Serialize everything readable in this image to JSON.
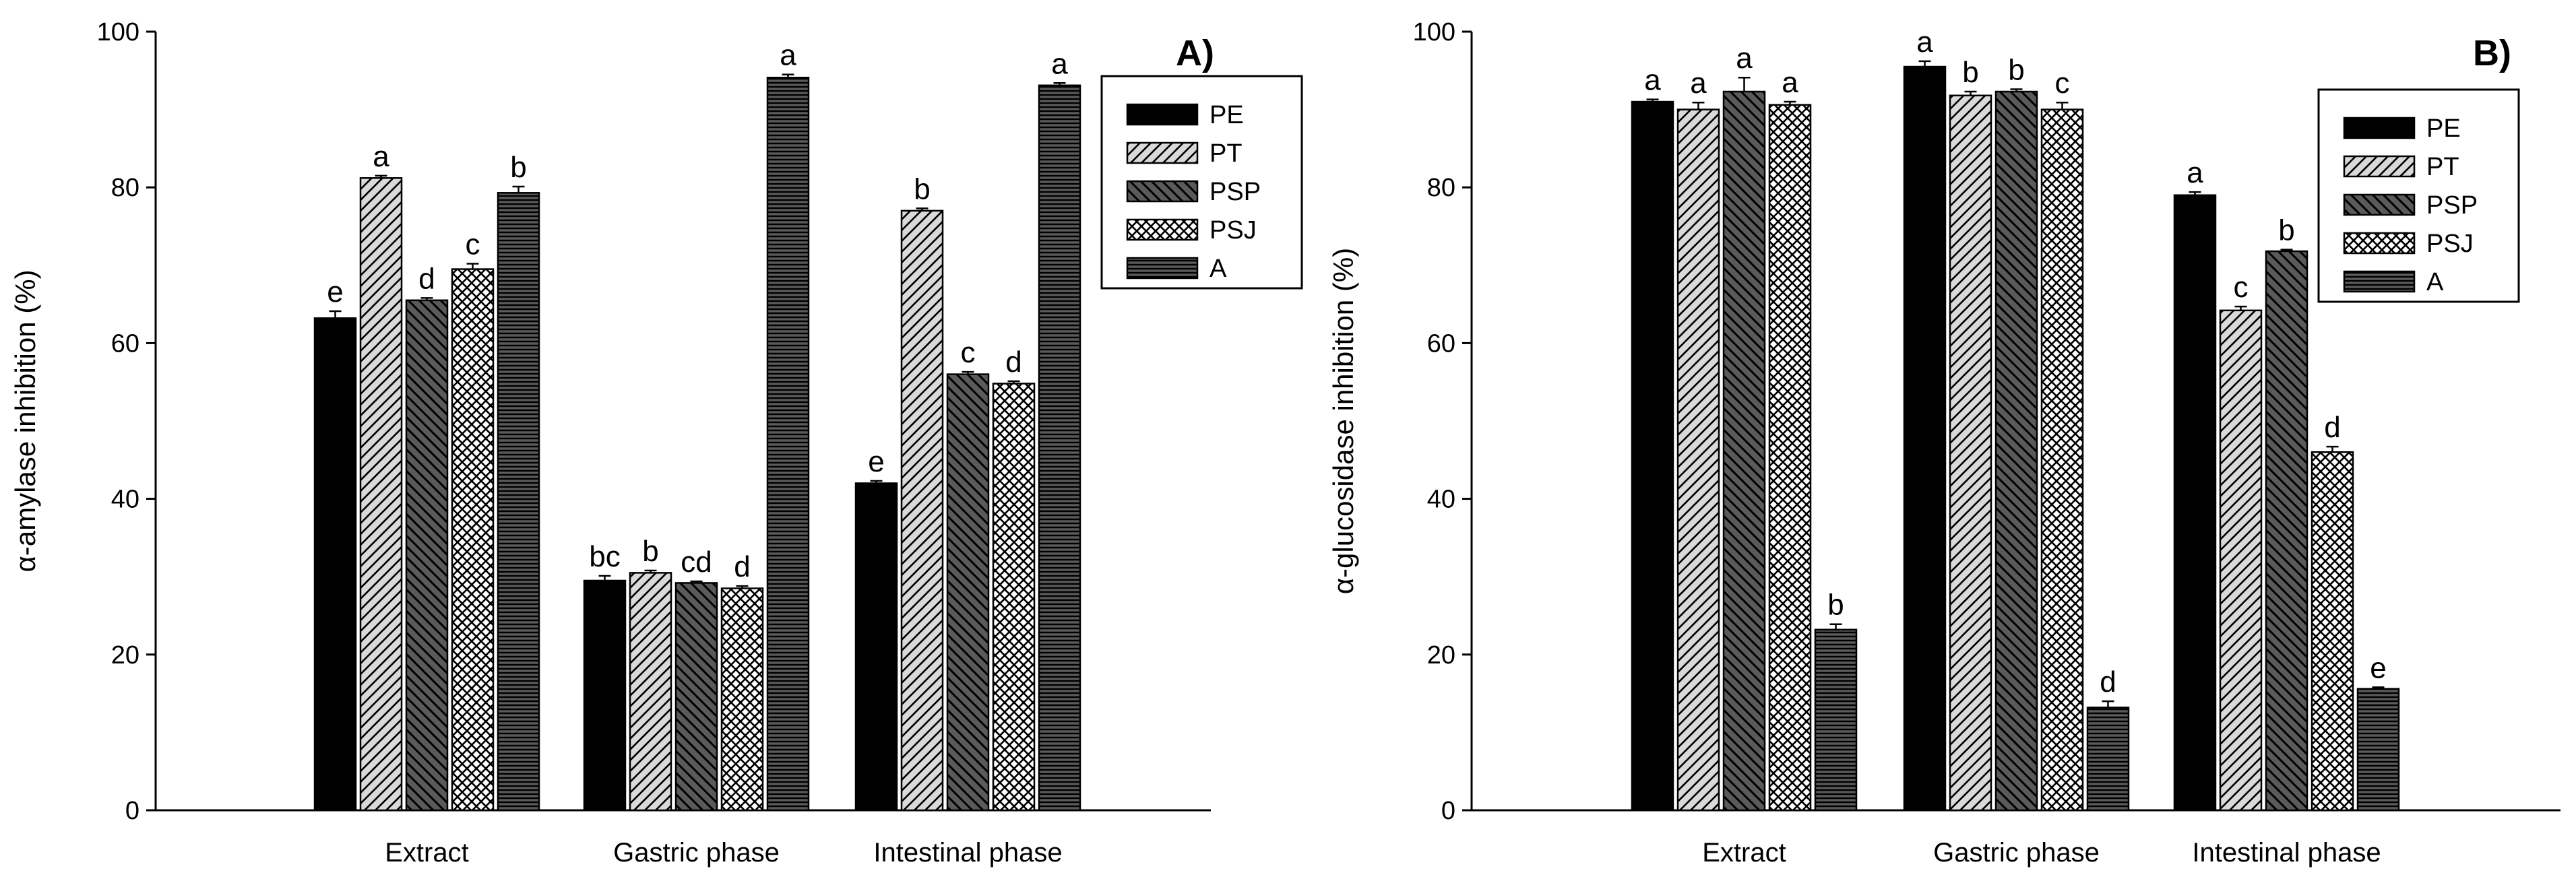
{
  "chart_data": [
    {
      "type": "bar",
      "panel_label": "A)",
      "title": "",
      "xlabel": "",
      "ylabel": "α-amylase inhibition (%)",
      "ylim": [
        0,
        100
      ],
      "yticks": [
        "0",
        "20",
        "40",
        "60",
        "80",
        "100"
      ],
      "legend_position": "top-right",
      "categories": [
        "Extract",
        "Gastric phase",
        "Intestinal phase"
      ],
      "series": [
        {
          "name": "PE",
          "values": [
            63.2,
            29.5,
            42.0
          ],
          "errors": [
            0.9,
            0.6,
            0.3
          ],
          "letters": [
            "e",
            "bc",
            "e"
          ]
        },
        {
          "name": "PT",
          "values": [
            81.2,
            30.5,
            77.0
          ],
          "errors": [
            0.3,
            0.3,
            0.3
          ],
          "letters": [
            "a",
            "b",
            "b"
          ]
        },
        {
          "name": "PSP",
          "values": [
            65.5,
            29.2,
            56.0
          ],
          "errors": [
            0.3,
            0.2,
            0.3
          ],
          "letters": [
            "d",
            "cd",
            "c"
          ]
        },
        {
          "name": "PSJ",
          "values": [
            69.5,
            28.5,
            54.8
          ],
          "errors": [
            0.7,
            0.3,
            0.3
          ],
          "letters": [
            "c",
            "d",
            "d"
          ]
        },
        {
          "name": "A",
          "values": [
            79.3,
            94.1,
            93.1
          ],
          "errors": [
            0.8,
            0.4,
            0.3
          ],
          "letters": [
            "b",
            "a",
            "a"
          ]
        }
      ]
    },
    {
      "type": "bar",
      "panel_label": "B)",
      "title": "",
      "xlabel": "",
      "ylabel": "α-glucosidase inhibition (%)",
      "ylim": [
        0,
        100
      ],
      "yticks": [
        "0",
        "20",
        "40",
        "60",
        "80",
        "100"
      ],
      "legend_position": "top-right",
      "categories": [
        "Extract",
        "Gastric phase",
        "Intestinal phase"
      ],
      "series": [
        {
          "name": "PE",
          "values": [
            91.0,
            95.5,
            79.0
          ],
          "errors": [
            0.3,
            0.7,
            0.4
          ],
          "letters": [
            "a",
            "a",
            "a"
          ]
        },
        {
          "name": "PT",
          "values": [
            90.0,
            91.8,
            64.2
          ],
          "errors": [
            0.9,
            0.5,
            0.5
          ],
          "letters": [
            "a",
            "b",
            "c"
          ]
        },
        {
          "name": "PSP",
          "values": [
            92.3,
            92.3,
            71.8
          ],
          "errors": [
            1.8,
            0.3,
            0.2
          ],
          "letters": [
            "a",
            "b",
            "b"
          ]
        },
        {
          "name": "PSJ",
          "values": [
            90.6,
            90.0,
            46.0
          ],
          "errors": [
            0.4,
            0.9,
            0.7
          ],
          "letters": [
            "a",
            "c",
            "d"
          ]
        },
        {
          "name": "A",
          "values": [
            23.2,
            13.2,
            15.6
          ],
          "errors": [
            0.7,
            0.8,
            0.2
          ],
          "letters": [
            "b",
            "d",
            "e"
          ]
        }
      ]
    }
  ],
  "patterns": {
    "PE": "solid-black",
    "PT": "diagonal-light-gray",
    "PSP": "back-diagonal-dark-gray",
    "PSJ": "crosshatch-white",
    "A": "horizontal-dark-gray"
  }
}
